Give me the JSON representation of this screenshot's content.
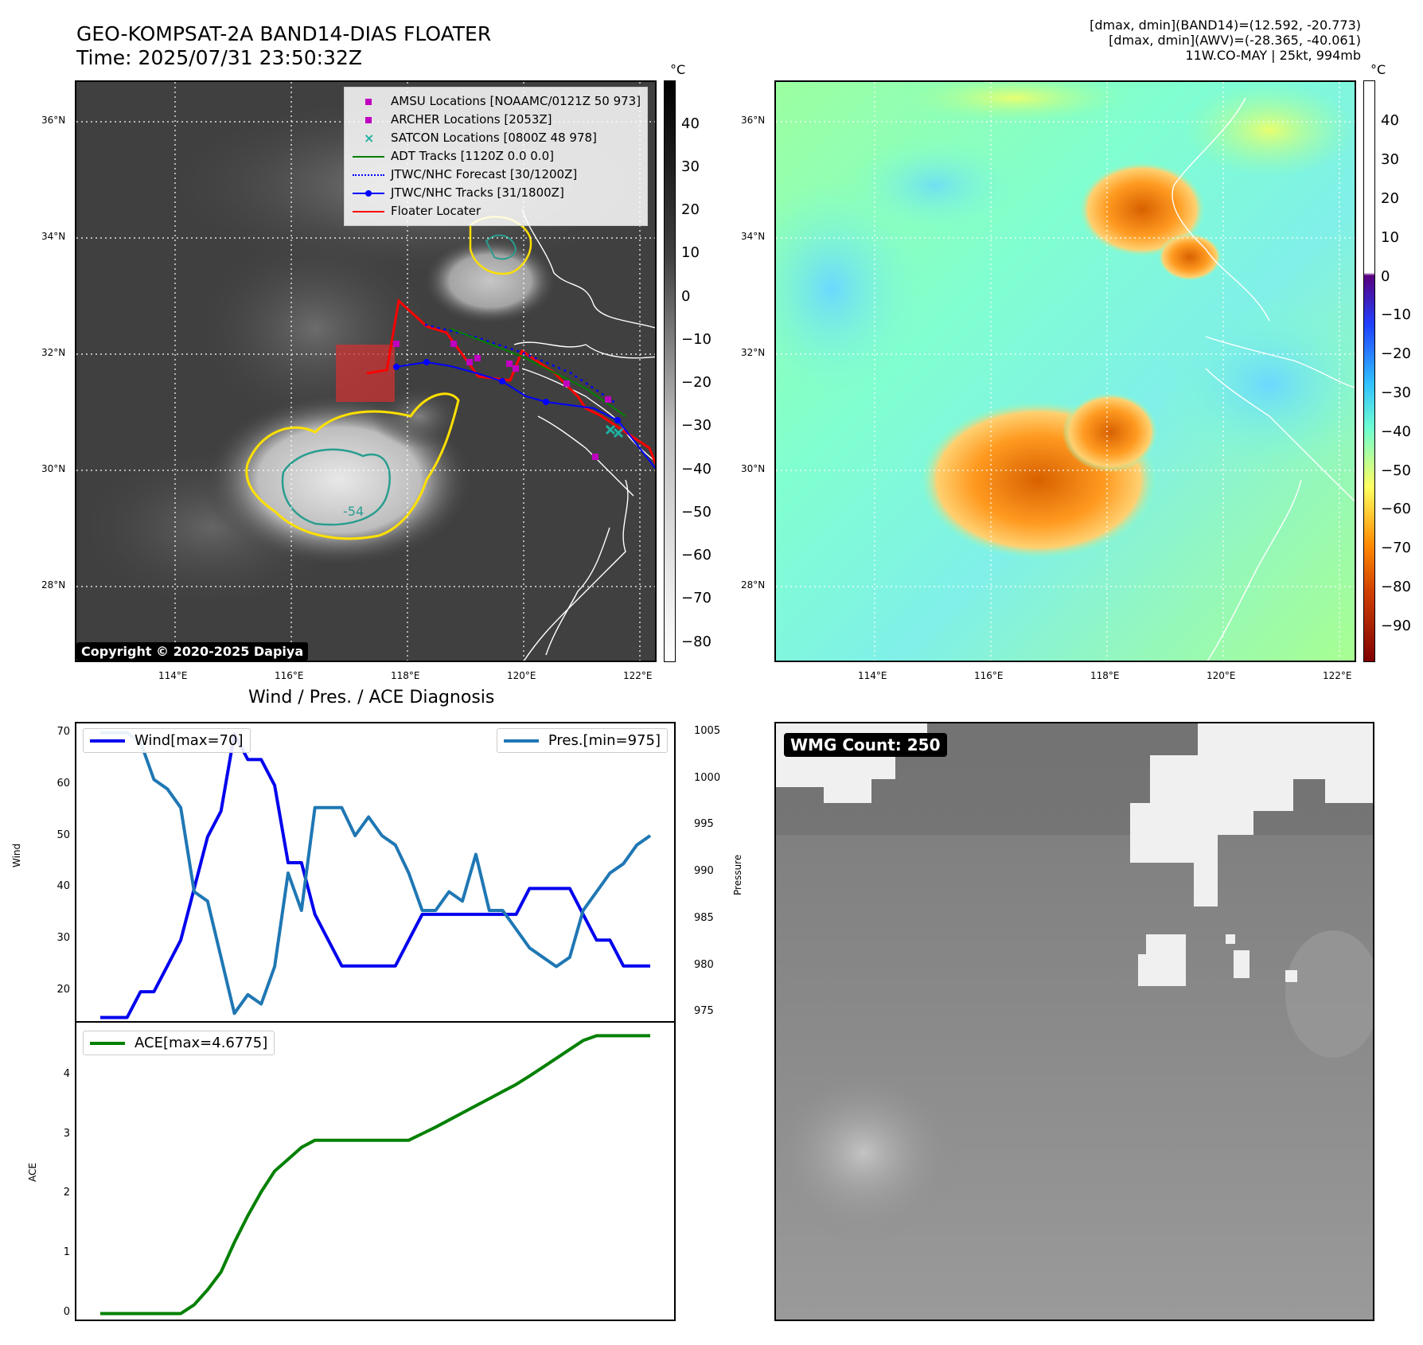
{
  "header": {
    "title_line1": "GEO-KOMPSAT-2A BAND14-DIAS FLOATER",
    "title_line2": "Time: 2025/07/31 23:50:32Z",
    "right_line1": "[dmax, dmin](BAND14)=(12.592, -20.773)",
    "right_line2": "[dmax, dmin](AWV)=(-28.365, -40.061)",
    "right_line3": "11W.CO-MAY | 25kt, 994mb"
  },
  "map_axes": {
    "lat_labels": [
      "36°N",
      "34°N",
      "32°N",
      "30°N",
      "28°N"
    ],
    "lon_labels": [
      "114°E",
      "116°E",
      "118°E",
      "120°E",
      "122°E"
    ]
  },
  "ir_colorbar": {
    "unit": "°C",
    "ticks": [
      "40",
      "30",
      "20",
      "10",
      "0",
      "−10",
      "−20",
      "−30",
      "−40",
      "−50",
      "−60",
      "−70",
      "−80"
    ]
  },
  "wv_colorbar": {
    "unit": "°C",
    "ticks": [
      "40",
      "30",
      "20",
      "10",
      "0",
      "−10",
      "−20",
      "−30",
      "−40",
      "−50",
      "−60",
      "−70",
      "−80",
      "−90"
    ]
  },
  "legend": {
    "items": [
      {
        "label": "AMSU Locations [NOAAMC/0121Z 50 973]",
        "color": "#c000c0",
        "kind": "square"
      },
      {
        "label": "ARCHER Locations [2053Z]",
        "color": "#c000c0",
        "kind": "square"
      },
      {
        "label": "SATCON Locations [0800Z 48 978]",
        "color": "#20b0a0",
        "kind": "x"
      },
      {
        "label": "ADT Tracks [1120Z 0.0 0.0]",
        "color": "#008000",
        "kind": "line"
      },
      {
        "label": "JTWC/NHC Forecast [30/1200Z]",
        "color": "#0000ff",
        "kind": "dotted"
      },
      {
        "label": "JTWC/NHC Tracks [31/1800Z]",
        "color": "#0000ff",
        "kind": "linedot"
      },
      {
        "label": "Floater Locater",
        "color": "#ff0000",
        "kind": "line"
      }
    ]
  },
  "copyright": "Copyright © 2020-2025 Dapiya",
  "contour_label": "-54",
  "wmg_label": "WMG Count: 250",
  "colors": {
    "wind": "#0000ee",
    "pressure": "#1f77b4",
    "ace": "#008000",
    "floater": "#ff0000"
  },
  "chart_data": [
    {
      "type": "line",
      "title": "Wind / Pres. / ACE Diagnosis",
      "ylabel": "Wind",
      "y2label": "Pressure",
      "ylim": [
        14,
        72
      ],
      "y2lim": [
        974,
        1006
      ],
      "yticks": [
        20,
        30,
        40,
        50,
        60,
        70
      ],
      "y2ticks": [
        975,
        980,
        985,
        990,
        995,
        1000,
        1005
      ],
      "series": [
        {
          "name": "Wind[max=70]",
          "axis": "left",
          "values": [
            15,
            15,
            15,
            20,
            20,
            25,
            30,
            40,
            50,
            55,
            70,
            65,
            65,
            60,
            45,
            45,
            35,
            30,
            25,
            25,
            25,
            25,
            25,
            30,
            35,
            35,
            35,
            35,
            35,
            35,
            35,
            35,
            40,
            40,
            40,
            40,
            35,
            30,
            30,
            25,
            25,
            25
          ]
        },
        {
          "name": "Pres.[min=975]",
          "axis": "right",
          "values": [
            1005,
            1005,
            1005,
            1004,
            1000,
            999,
            997,
            988,
            987,
            981,
            975,
            977,
            976,
            980,
            990,
            986,
            997,
            997,
            997,
            994,
            996,
            994,
            993,
            990,
            986,
            986,
            988,
            987,
            992,
            986,
            986,
            984,
            982,
            981,
            980,
            981,
            986,
            988,
            990,
            991,
            993,
            994
          ]
        }
      ]
    },
    {
      "type": "line",
      "ylabel": "ACE",
      "ylim": [
        -0.1,
        4.9
      ],
      "yticks": [
        0,
        1,
        2,
        3,
        4
      ],
      "series": [
        {
          "name": "ACE[max=4.6775]",
          "values": [
            0,
            0,
            0,
            0,
            0,
            0,
            0,
            0.15,
            0.4,
            0.7,
            1.2,
            1.65,
            2.05,
            2.4,
            2.6,
            2.8,
            2.92,
            2.92,
            2.92,
            2.92,
            2.92,
            2.92,
            2.92,
            2.92,
            3.03,
            3.14,
            3.26,
            3.38,
            3.5,
            3.62,
            3.74,
            3.86,
            4.0,
            4.15,
            4.3,
            4.45,
            4.6,
            4.68,
            4.68,
            4.68,
            4.68,
            4.68
          ]
        }
      ]
    }
  ]
}
